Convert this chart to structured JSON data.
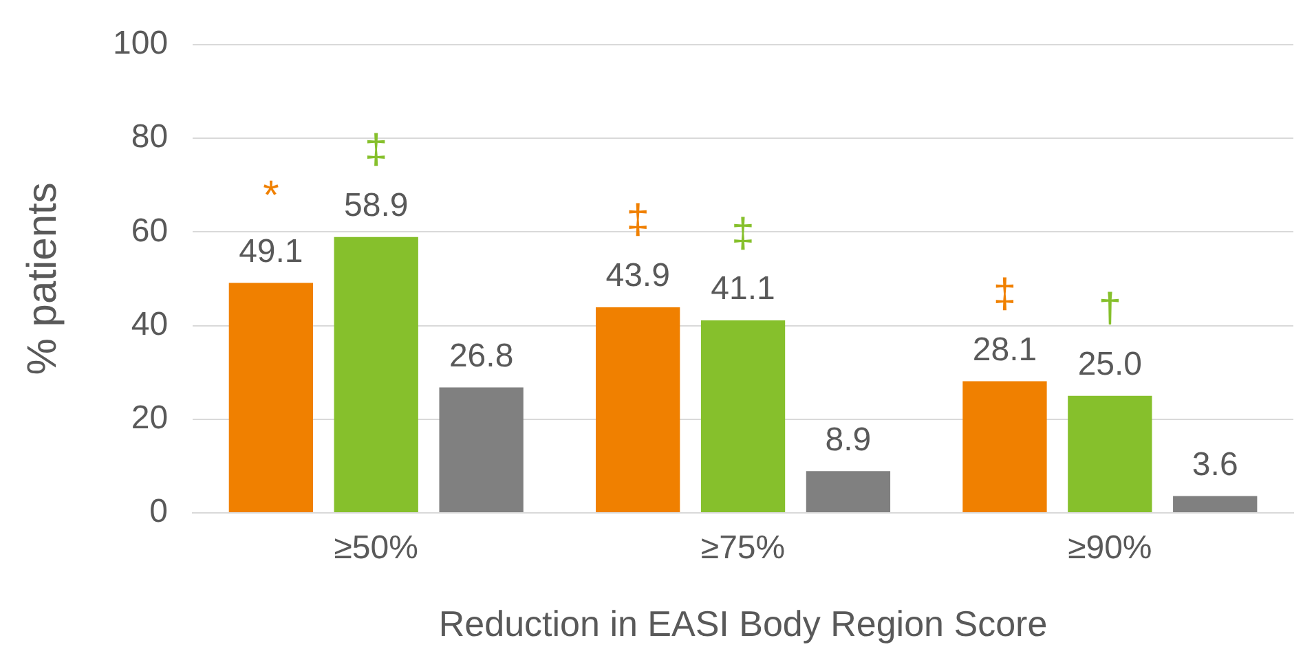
{
  "chart_data": {
    "type": "bar",
    "xlabel": "Reduction in EASI Body Region Score",
    "ylabel": "% patients",
    "categories": [
      "≥50%",
      "≥75%",
      "≥90%"
    ],
    "series": [
      {
        "color": "#f08000",
        "values": [
          49.1,
          43.9,
          28.1
        ]
      },
      {
        "color": "#86c02c",
        "values": [
          58.9,
          41.1,
          25.0
        ]
      },
      {
        "color": "#808080",
        "values": [
          26.8,
          8.9,
          3.6
        ]
      }
    ],
    "value_labels": [
      [
        "49.1",
        "43.9",
        "28.1"
      ],
      [
        "58.9",
        "41.1",
        "25.0"
      ],
      [
        "26.8",
        "8.9",
        "3.6"
      ]
    ],
    "annotations": [
      "*",
      "‡",
      "‡",
      "‡",
      "‡",
      "†"
    ],
    "ylim": [
      0,
      100
    ],
    "yticks": [
      0,
      20,
      40,
      60,
      80,
      100
    ],
    "grid": "y",
    "legend": false
  }
}
